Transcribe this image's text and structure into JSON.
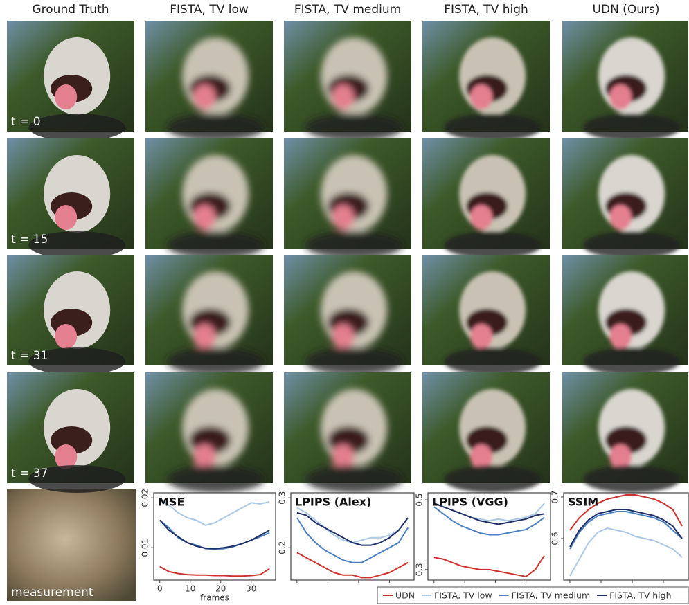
{
  "columns": [
    "Ground Truth",
    "FISTA, TV low",
    "FISTA, TV medium",
    "FISTA, TV high",
    "UDN (Ours)"
  ],
  "rows": [
    "t = 0",
    "t = 15",
    "t = 31",
    "t = 37"
  ],
  "measurement": "measurement",
  "chart_data": [
    {
      "type": "line",
      "title": "MSE",
      "x_label": "frames",
      "x": [
        0,
        3,
        6,
        9,
        12,
        15,
        18,
        21,
        24,
        27,
        30,
        33,
        36
      ],
      "xlim": [
        -2,
        38
      ],
      "xticks": [
        0,
        10,
        20,
        30
      ],
      "show_xtick_labels": true,
      "ylim": [
        0.0035,
        0.021
      ],
      "yticks": [
        0.01,
        0.02
      ],
      "series": [
        {
          "name": "UDN",
          "color": "#d0312d",
          "values": [
            0.0062,
            0.0052,
            0.0048,
            0.0046,
            0.0045,
            0.0045,
            0.0044,
            0.0044,
            0.0043,
            0.0043,
            0.0044,
            0.0046,
            0.0058
          ]
        },
        {
          "name": "FISTA, TV low",
          "color": "#a9c8e6",
          "values": [
            0.0195,
            0.0185,
            0.017,
            0.016,
            0.0155,
            0.0145,
            0.015,
            0.016,
            0.017,
            0.018,
            0.019,
            0.0188,
            0.0192
          ]
        },
        {
          "name": "FISTA, TV medium",
          "color": "#4a7fc1",
          "values": [
            0.0155,
            0.014,
            0.012,
            0.011,
            0.0105,
            0.0098,
            0.0097,
            0.0098,
            0.0102,
            0.0108,
            0.0115,
            0.0122,
            0.013
          ]
        },
        {
          "name": "FISTA, TV high",
          "color": "#1f2f66",
          "values": [
            0.0155,
            0.0135,
            0.0122,
            0.011,
            0.0103,
            0.0099,
            0.0098,
            0.01,
            0.0103,
            0.0108,
            0.0115,
            0.0125,
            0.0135
          ]
        }
      ]
    },
    {
      "type": "line",
      "title": "LPIPS (Alex)",
      "x": [
        0,
        3,
        6,
        9,
        12,
        15,
        18,
        21,
        24,
        27,
        30,
        33,
        36
      ],
      "xlim": [
        -2,
        38
      ],
      "xticks": [
        0,
        10,
        20,
        30
      ],
      "show_xtick_labels": false,
      "ylim": [
        0.135,
        0.31
      ],
      "yticks": [
        0.2,
        0.3
      ],
      "series": [
        {
          "color": "#d0312d",
          "values": [
            0.19,
            0.18,
            0.17,
            0.16,
            0.15,
            0.145,
            0.145,
            0.14,
            0.14,
            0.145,
            0.15,
            0.16,
            0.17
          ]
        },
        {
          "color": "#a9c8e6",
          "values": [
            0.28,
            0.27,
            0.255,
            0.24,
            0.225,
            0.215,
            0.21,
            0.215,
            0.22,
            0.22,
            0.225,
            0.235,
            0.26
          ]
        },
        {
          "color": "#4a7fc1",
          "values": [
            0.26,
            0.23,
            0.21,
            0.195,
            0.185,
            0.175,
            0.17,
            0.17,
            0.18,
            0.19,
            0.2,
            0.21,
            0.24
          ]
        },
        {
          "color": "#1f2f66",
          "values": [
            0.27,
            0.265,
            0.25,
            0.24,
            0.23,
            0.22,
            0.21,
            0.205,
            0.205,
            0.21,
            0.22,
            0.235,
            0.26
          ]
        }
      ]
    },
    {
      "type": "line",
      "title": "LPIPS (VGG)",
      "x": [
        0,
        3,
        6,
        9,
        12,
        15,
        18,
        21,
        24,
        27,
        30,
        33,
        36
      ],
      "xlim": [
        -2,
        38
      ],
      "xticks": [
        0,
        10,
        20,
        30
      ],
      "show_xtick_labels": false,
      "ylim": [
        0.27,
        0.52
      ],
      "yticks": [
        0.3,
        0.5
      ],
      "series": [
        {
          "color": "#d0312d",
          "values": [
            0.335,
            0.33,
            0.32,
            0.31,
            0.305,
            0.3,
            0.3,
            0.295,
            0.29,
            0.285,
            0.28,
            0.3,
            0.34
          ]
        },
        {
          "color": "#a9c8e6",
          "values": [
            0.49,
            0.48,
            0.47,
            0.46,
            0.45,
            0.445,
            0.44,
            0.445,
            0.44,
            0.445,
            0.45,
            0.46,
            0.49
          ]
        },
        {
          "color": "#4a7fc1",
          "values": [
            0.48,
            0.46,
            0.44,
            0.425,
            0.415,
            0.405,
            0.4,
            0.4,
            0.405,
            0.41,
            0.415,
            0.43,
            0.45
          ]
        },
        {
          "color": "#1f2f66",
          "values": [
            0.49,
            0.48,
            0.47,
            0.46,
            0.45,
            0.44,
            0.435,
            0.43,
            0.435,
            0.44,
            0.445,
            0.455,
            0.46
          ]
        }
      ]
    },
    {
      "type": "line",
      "title": "SSIM",
      "x": [
        0,
        3,
        6,
        9,
        12,
        15,
        18,
        21,
        24,
        27,
        30,
        33,
        36
      ],
      "xlim": [
        -2,
        38
      ],
      "xticks": [
        0,
        10,
        20,
        30
      ],
      "show_xtick_labels": false,
      "ylim": [
        0.5,
        0.71
      ],
      "yticks": [
        0.6,
        0.7
      ],
      "series": [
        {
          "color": "#d0312d",
          "values": [
            0.62,
            0.65,
            0.67,
            0.685,
            0.695,
            0.7,
            0.705,
            0.705,
            0.7,
            0.695,
            0.685,
            0.67,
            0.63
          ]
        },
        {
          "color": "#a9c8e6",
          "values": [
            0.51,
            0.55,
            0.59,
            0.615,
            0.625,
            0.62,
            0.615,
            0.605,
            0.6,
            0.595,
            0.585,
            0.575,
            0.555
          ]
        },
        {
          "color": "#4a7fc1",
          "values": [
            0.575,
            0.615,
            0.64,
            0.655,
            0.66,
            0.665,
            0.665,
            0.66,
            0.655,
            0.65,
            0.64,
            0.62,
            0.6
          ]
        },
        {
          "color": "#1f2f66",
          "values": [
            0.58,
            0.62,
            0.645,
            0.66,
            0.665,
            0.67,
            0.67,
            0.665,
            0.66,
            0.655,
            0.645,
            0.63,
            0.6
          ]
        }
      ]
    }
  ]
}
